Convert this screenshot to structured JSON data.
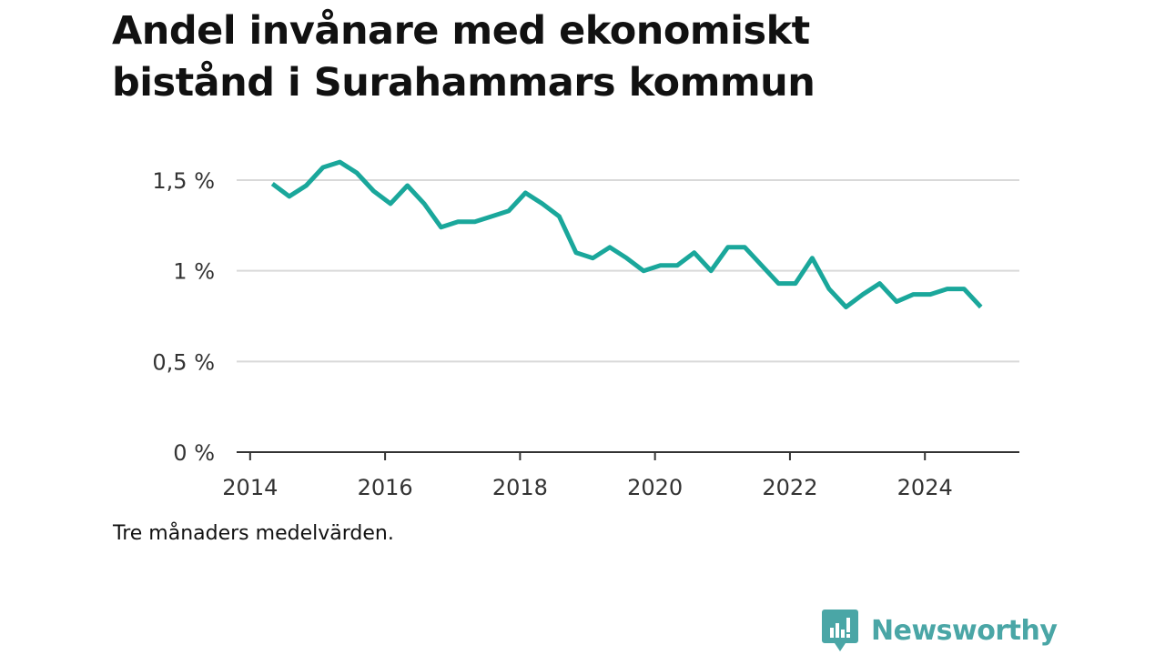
{
  "title_lines": [
    "Andel invånare med ekonomiskt",
    "bistånd i Surahammars kommun"
  ],
  "note": "Tre månaders medelvärden.",
  "brand": {
    "name": "Newsworthy",
    "color": "#4aa6a6"
  },
  "colors": {
    "line": "#1aa79b",
    "grid": "#d9d9d9",
    "axis": "#333333",
    "text": "#333333"
  },
  "chart_data": {
    "type": "line",
    "title": "Andel invånare med ekonomiskt bistånd i Surahammars kommun",
    "xlabel": "",
    "ylabel": "",
    "xlim": [
      2013.8,
      2025.4
    ],
    "ylim": [
      0,
      1.5
    ],
    "x_ticks": [
      2014,
      2016,
      2018,
      2020,
      2022,
      2024
    ],
    "x_tick_labels": [
      "2014",
      "2016",
      "2018",
      "2020",
      "2022",
      "2024"
    ],
    "y_ticks": [
      0,
      0.5,
      1,
      1.5
    ],
    "y_tick_labels": [
      "0 %",
      "0,5 %",
      "1 %",
      "1,5 %"
    ],
    "grid": true,
    "series": [
      {
        "x": [
          2014.33,
          2014.58,
          2014.83,
          2015.08,
          2015.33,
          2015.58,
          2015.83,
          2016.08,
          2016.33,
          2016.58,
          2016.83,
          2017.08,
          2017.33,
          2017.58,
          2017.83,
          2018.08,
          2018.33,
          2018.58,
          2018.83,
          2019.08,
          2019.33,
          2019.58,
          2019.83,
          2020.08,
          2020.33,
          2020.58,
          2020.83,
          2021.08,
          2021.33,
          2021.58,
          2021.83,
          2022.08,
          2022.33,
          2022.58,
          2022.83,
          2023.08,
          2023.33,
          2023.58,
          2023.83,
          2024.08,
          2024.33,
          2024.58,
          2024.83
        ],
        "values": [
          1.48,
          1.41,
          1.47,
          1.57,
          1.6,
          1.54,
          1.44,
          1.37,
          1.47,
          1.37,
          1.24,
          1.27,
          1.27,
          1.3,
          1.33,
          1.43,
          1.37,
          1.3,
          1.1,
          1.07,
          1.13,
          1.07,
          1.0,
          1.03,
          1.03,
          1.1,
          1.0,
          1.13,
          1.13,
          1.03,
          0.93,
          0.93,
          1.07,
          0.9,
          0.8,
          0.87,
          0.93,
          0.83,
          0.87,
          0.87,
          0.9,
          0.9,
          0.8
        ]
      }
    ]
  }
}
